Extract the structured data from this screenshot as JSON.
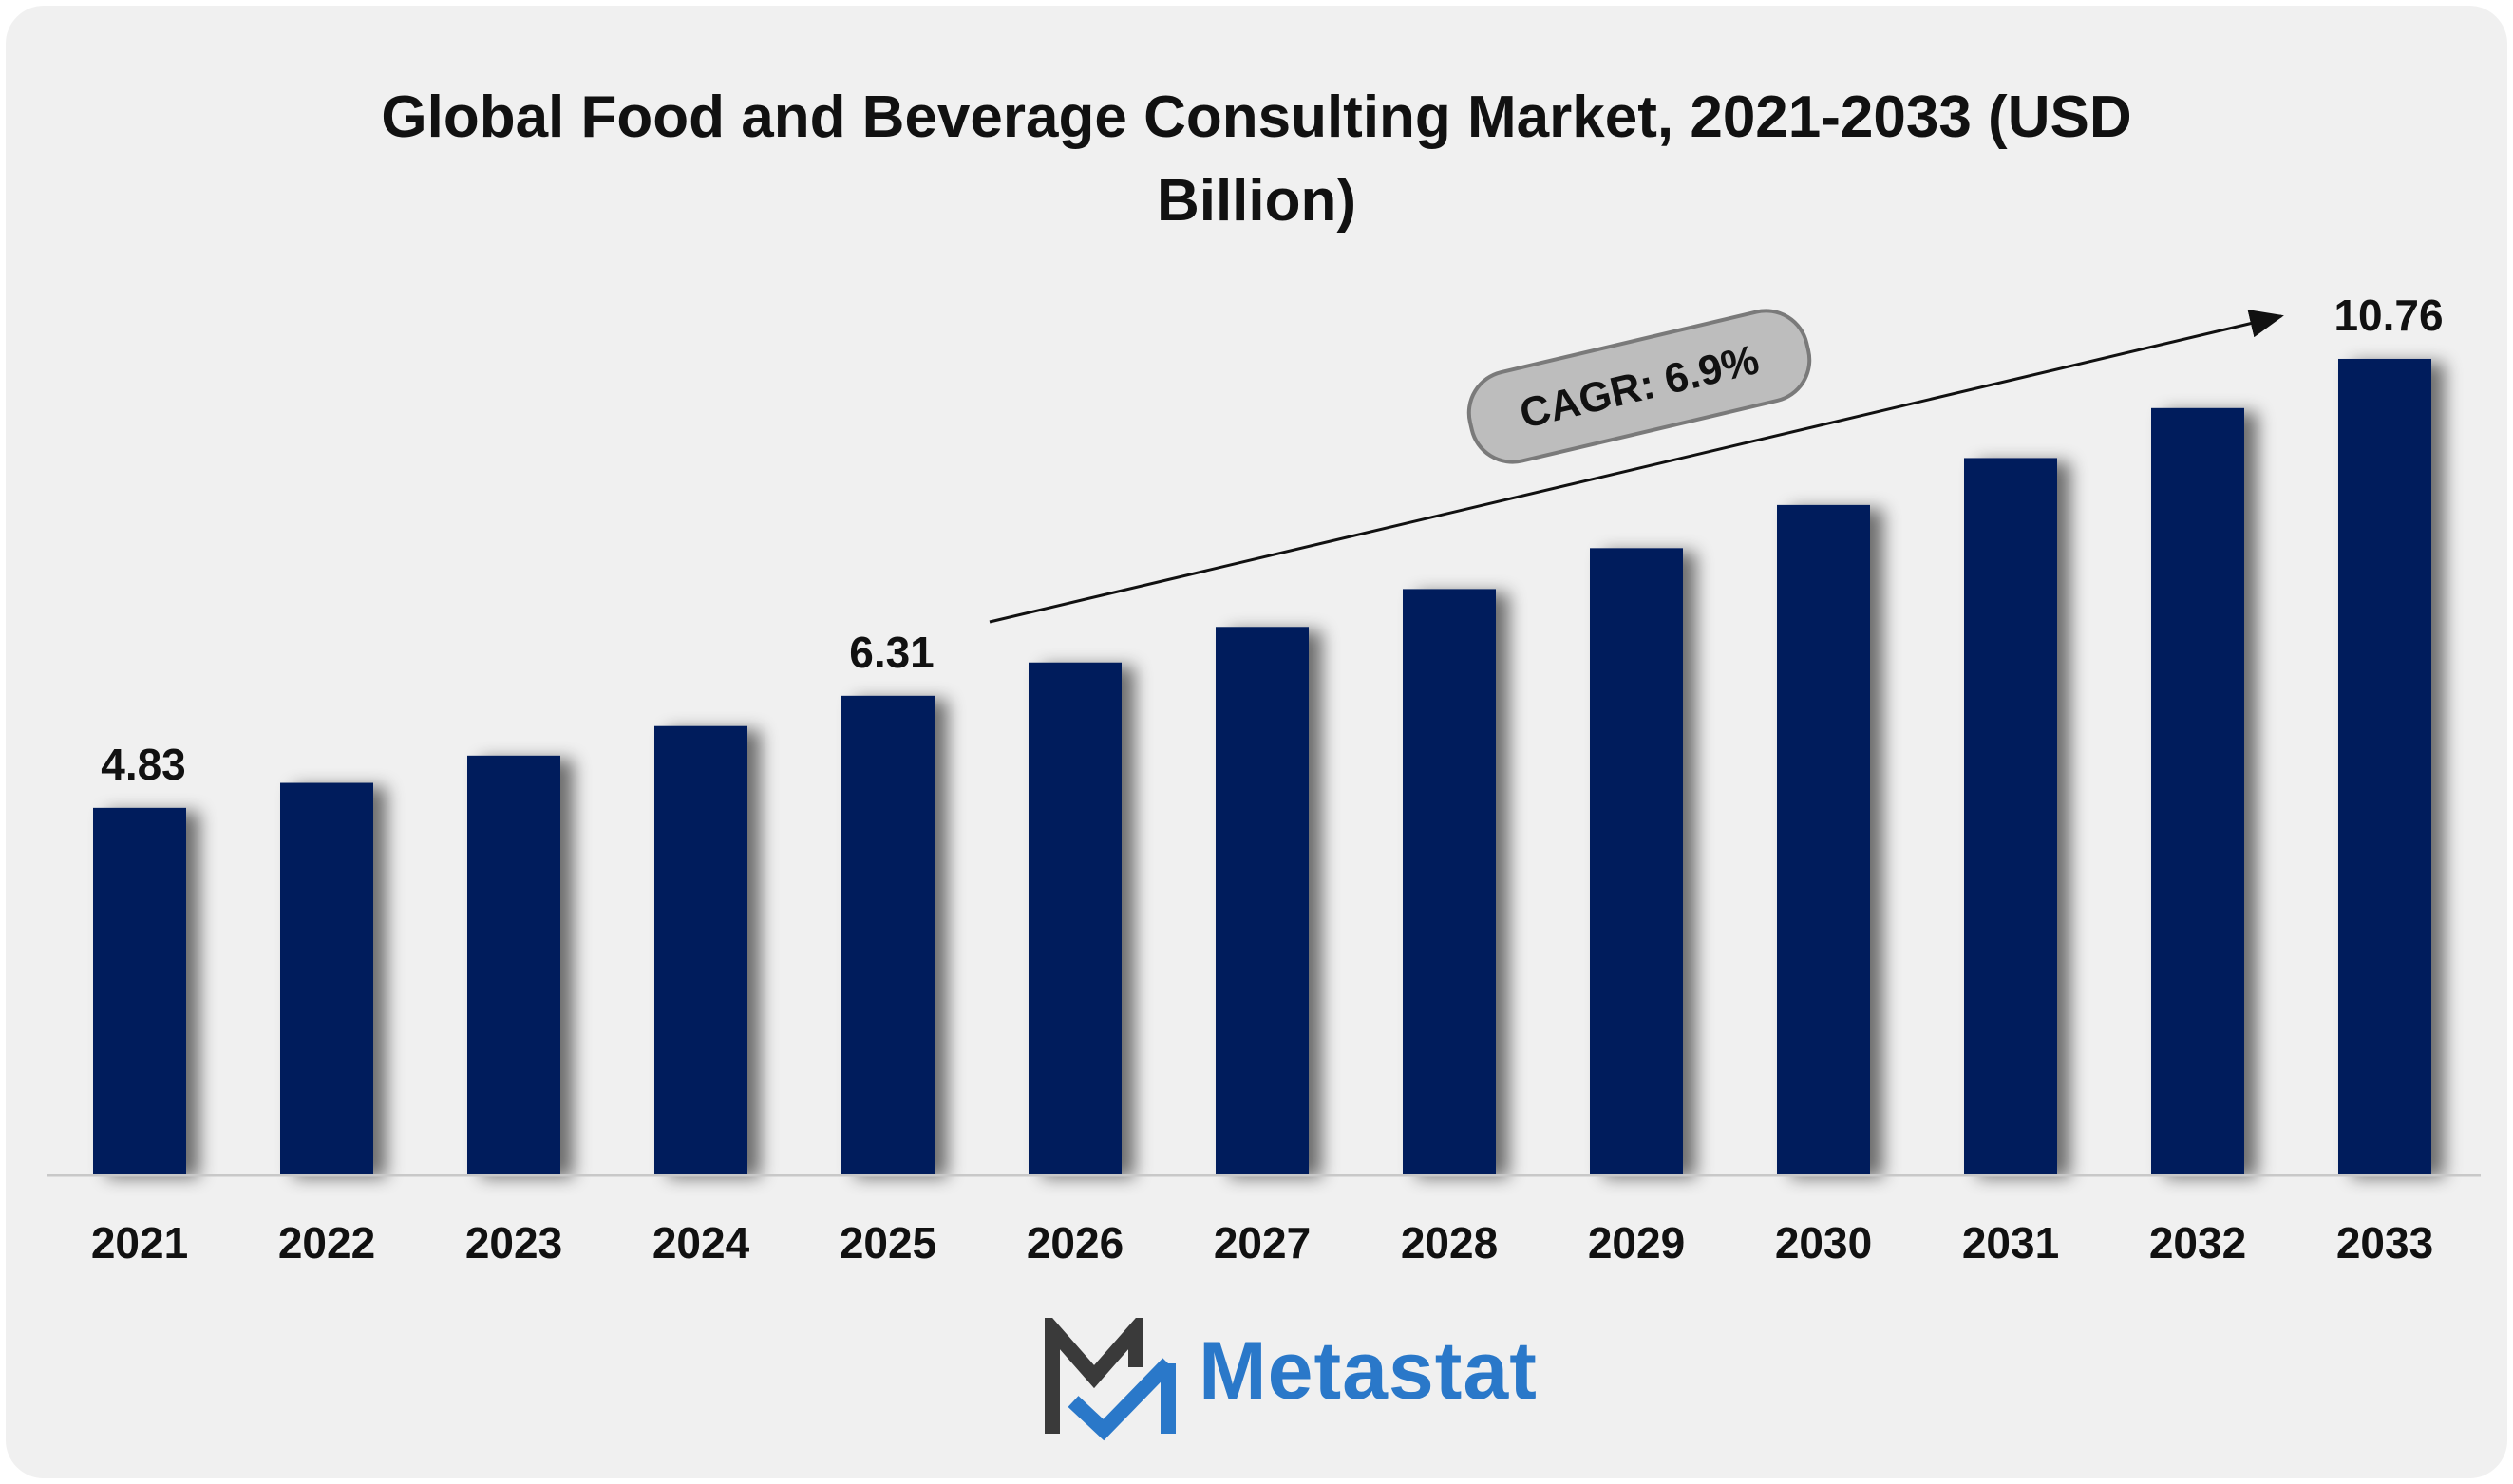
{
  "chart_data": {
    "type": "bar",
    "title_line1": "Global Food and Beverage Consulting Market, 2021-2033 (USD",
    "title_line2": "Billion)",
    "categories": [
      "2021",
      "2022",
      "2023",
      "2024",
      "2025",
      "2026",
      "2027",
      "2028",
      "2029",
      "2030",
      "2031",
      "2032",
      "2033"
    ],
    "values": [
      4.83,
      5.16,
      5.52,
      5.91,
      6.31,
      6.75,
      7.22,
      7.72,
      8.26,
      8.83,
      9.45,
      10.11,
      10.76
    ],
    "data_labels": {
      "0": "4.83",
      "4": "6.31",
      "12": "10.76"
    },
    "annotation": "CAGR: 6.9%",
    "ylim": [
      0,
      15.5
    ],
    "bar_color": "#021f5c",
    "xlabel": "",
    "ylabel": ""
  },
  "brand": {
    "name": "Metastat",
    "colors": {
      "dark": "#3a3a3a",
      "blue": "#2a78c9"
    }
  }
}
